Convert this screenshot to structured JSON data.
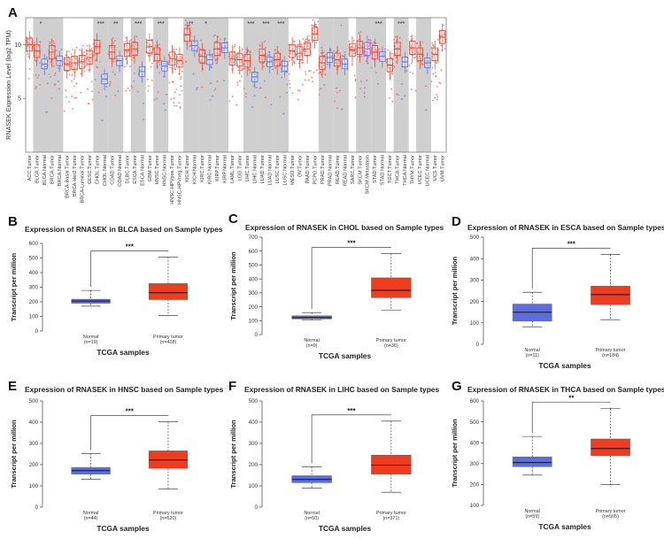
{
  "panels": {
    "A": {
      "letter": "A"
    },
    "B": {
      "letter": "B"
    },
    "C": {
      "letter": "C"
    },
    "D": {
      "letter": "D"
    },
    "E": {
      "letter": "E"
    },
    "F": {
      "letter": "F"
    },
    "G": {
      "letter": "G"
    }
  },
  "colors": {
    "tumor": "#f03c1e",
    "normal": "#5b6ee0",
    "tumor_dot": "#f25a5a",
    "normal_dot": "#6070e0",
    "skcm_met": "#b050e0",
    "shade": "#cfcfcf"
  },
  "chart_data": [
    {
      "panel": "A",
      "type": "box",
      "ylabel": "RNASEK Expression Level (log2 TPM)",
      "yticks": [
        5,
        10
      ],
      "ylim": [
        0,
        12.5
      ],
      "categories": [
        "ACC.Tumor",
        "BLCA.Tumor",
        "BLCA.Normal",
        "BRCA.Tumor",
        "BRCA.Normal",
        "BRCA-Basal.Tumor",
        "BRCA-Her2.Tumor",
        "BRCA-Luminal.Tumor",
        "CESC.Tumor",
        "CHOL.Tumor",
        "CHOL.Normal",
        "COAD.Tumor",
        "COAD.Normal",
        "DLBC.Tumor",
        "ESCA.Tumor",
        "ESCA.Normal",
        "GBM.Tumor",
        "HNSC.Tumor",
        "HNSC.Normal",
        "HNSC-HPVpos.Tumor",
        "HNSC-HPVneg.Tumor",
        "KICH.Tumor",
        "KICH.Normal",
        "KIRC.Tumor",
        "KIRC.Normal",
        "KIRP.Tumor",
        "KIRP.Normal",
        "LAML.Tumor",
        "LGG.Tumor",
        "LIHC.Tumor",
        "LIHC.Normal",
        "LUAD.Tumor",
        "LUAD.Normal",
        "LUSC.Tumor",
        "LUSC.Normal",
        "MESO.Tumor",
        "OV.Tumor",
        "PAAD.Tumor",
        "PCPG.Tumor",
        "PRAD.Tumor",
        "PRAD.Normal",
        "READ.Tumor",
        "READ.Normal",
        "SARC.Tumor",
        "SKCM.Tumor",
        "SKCM.Metastasis",
        "STAD.Tumor",
        "STAD.Normal",
        "TGCT.Tumor",
        "THCA.Tumor",
        "THCA.Normal",
        "THYM.Tumor",
        "UCEC.Tumor",
        "UCEC.Normal",
        "UCS.Tumor",
        "UVM.Tumor"
      ],
      "medians": [
        10.0,
        9.4,
        8.2,
        9.3,
        8.5,
        8.2,
        8.3,
        8.4,
        8.8,
        9.8,
        6.8,
        9.3,
        8.5,
        9.5,
        9.6,
        7.5,
        9.8,
        9.1,
        8.0,
        8.7,
        8.5,
        10.9,
        9.9,
        8.9,
        8.6,
        9.6,
        9.7,
        8.7,
        8.6,
        8.5,
        7.0,
        9.0,
        8.4,
        8.6,
        8.0,
        9.4,
        9.2,
        9.6,
        11.0,
        8.3,
        8.8,
        8.6,
        8.2,
        9.5,
        9.7,
        9.6,
        9.3,
        8.9,
        8.1,
        9.6,
        8.4,
        9.7,
        9.1,
        8.3,
        9.1,
        10.7
      ],
      "significance": [
        {
          "group": "BLCA",
          "label": "*"
        },
        {
          "group": "CHOL",
          "label": "***"
        },
        {
          "group": "COAD",
          "label": "**"
        },
        {
          "group": "ESCA",
          "label": "***"
        },
        {
          "group": "HNSC",
          "label": "***"
        },
        {
          "group": "KICH",
          "label": "**"
        },
        {
          "group": "KIRC",
          "label": "*"
        },
        {
          "group": "LIHC",
          "label": "***"
        },
        {
          "group": "LUAD",
          "label": "***"
        },
        {
          "group": "LUSC",
          "label": "***"
        },
        {
          "group": "READ",
          "label": "."
        },
        {
          "group": "STAD",
          "label": "***"
        },
        {
          "group": "THCA",
          "label": "***"
        }
      ]
    },
    {
      "panel": "B",
      "type": "box",
      "title": "Expression of RNASEK in BLCA based on Sample types",
      "xlabel": "TCGA samples",
      "ylabel": "Transcript per million",
      "ylim": [
        0,
        600
      ],
      "yticks": [
        0,
        100,
        200,
        300,
        400,
        500,
        600
      ],
      "groups": [
        {
          "name": "Normal",
          "n": "(n=19)",
          "min": 170,
          "q1": 190,
          "median": 205,
          "q3": 218,
          "max": 278
        },
        {
          "name": "Primary tumor",
          "n": "(n=408)",
          "min": 105,
          "q1": 215,
          "median": 262,
          "q3": 325,
          "max": 505
        }
      ],
      "significance": "***"
    },
    {
      "panel": "C",
      "type": "box",
      "title": "Expression of RNASEK in CHOL based on Sample types",
      "xlabel": "TCGA samples",
      "ylabel": "Transcript per million",
      "ylim": [
        0,
        700
      ],
      "yticks": [
        0,
        100,
        200,
        300,
        400,
        500,
        600,
        700
      ],
      "groups": [
        {
          "name": "Normal",
          "n": "(n=9)",
          "min": 105,
          "q1": 112,
          "median": 122,
          "q3": 135,
          "max": 158
        },
        {
          "name": "Primary tumor",
          "n": "(n=36)",
          "min": 175,
          "q1": 265,
          "median": 318,
          "q3": 408,
          "max": 582
        }
      ],
      "significance": "***"
    },
    {
      "panel": "D",
      "type": "box",
      "title": "Expression of RNASEK in ESCA based on Sample types",
      "xlabel": "TCGA samples",
      "ylabel": "Transcript per million",
      "ylim": [
        0,
        500
      ],
      "yticks": [
        0,
        100,
        200,
        300,
        400,
        500
      ],
      "groups": [
        {
          "name": "Normal",
          "n": "(n=11)",
          "min": 82,
          "q1": 108,
          "median": 150,
          "q3": 188,
          "max": 243
        },
        {
          "name": "Primary tumor",
          "n": "(n=184)",
          "min": 115,
          "q1": 185,
          "median": 232,
          "q3": 272,
          "max": 420
        }
      ],
      "significance": "***"
    },
    {
      "panel": "E",
      "type": "box",
      "title": "Expression of RNASEK in HNSC based on Sample types",
      "xlabel": "TCGA samples",
      "ylabel": "Transcript per million",
      "ylim": [
        0,
        500
      ],
      "yticks": [
        0,
        100,
        200,
        300,
        400,
        500
      ],
      "groups": [
        {
          "name": "Normal",
          "n": "(n=44)",
          "min": 132,
          "q1": 155,
          "median": 172,
          "q3": 187,
          "max": 252
        },
        {
          "name": "Primary tumor",
          "n": "(n=520)",
          "min": 85,
          "q1": 183,
          "median": 222,
          "q3": 265,
          "max": 402
        }
      ],
      "significance": "***"
    },
    {
      "panel": "F",
      "type": "box",
      "title": "Expression of RNASEK in LIHC based on Sample types",
      "xlabel": "TCGA samples",
      "ylabel": "Transcript per million",
      "ylim": [
        0,
        500
      ],
      "yticks": [
        0,
        100,
        200,
        300,
        400,
        500
      ],
      "groups": [
        {
          "name": "Normal",
          "n": "(n=50)",
          "min": 90,
          "q1": 115,
          "median": 130,
          "q3": 148,
          "max": 190
        },
        {
          "name": "Primary tumor",
          "n": "(n=371)",
          "min": 70,
          "q1": 155,
          "median": 198,
          "q3": 245,
          "max": 405
        }
      ],
      "significance": "***"
    },
    {
      "panel": "G",
      "type": "box",
      "title": "Expression of RNASEK in THCA based on Sample types",
      "xlabel": "TCGA samples",
      "ylabel": "Transcript per million",
      "ylim": [
        100,
        600
      ],
      "yticks": [
        100,
        200,
        300,
        400,
        500,
        600
      ],
      "groups": [
        {
          "name": "Normal",
          "n": "(n=59)",
          "min": 245,
          "q1": 285,
          "median": 305,
          "q3": 332,
          "max": 430
        },
        {
          "name": "Primary tumor",
          "n": "(n=505)",
          "min": 200,
          "q1": 338,
          "median": 372,
          "q3": 418,
          "max": 565
        }
      ],
      "significance": "**"
    }
  ]
}
